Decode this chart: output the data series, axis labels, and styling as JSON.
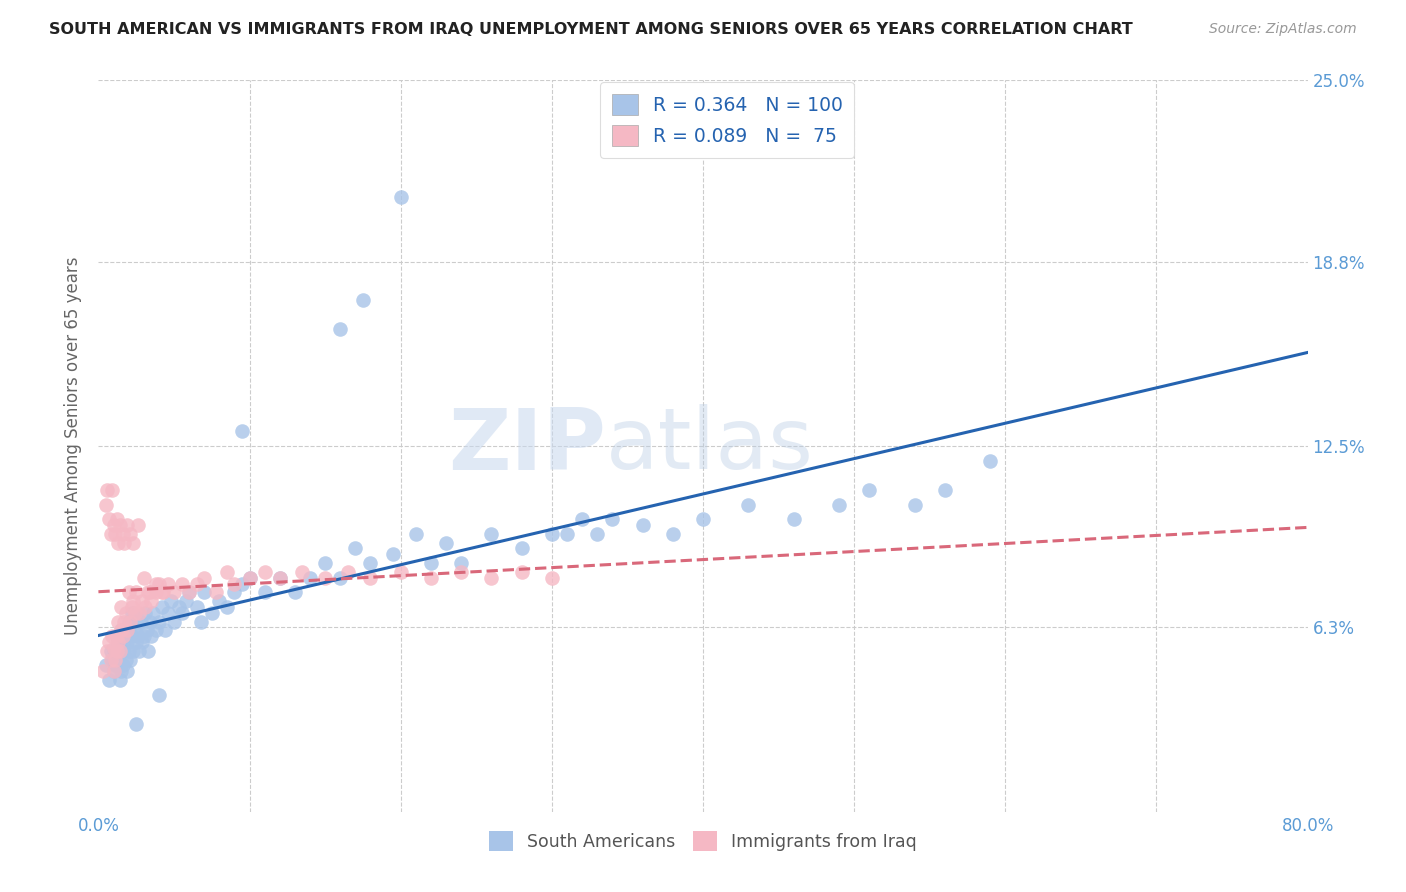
{
  "title": "SOUTH AMERICAN VS IMMIGRANTS FROM IRAQ UNEMPLOYMENT AMONG SENIORS OVER 65 YEARS CORRELATION CHART",
  "source": "Source: ZipAtlas.com",
  "ylabel": "Unemployment Among Seniors over 65 years",
  "xlim": [
    0.0,
    0.8
  ],
  "ylim": [
    0.0,
    0.25
  ],
  "ytick_vals": [
    0.0,
    0.063,
    0.125,
    0.188,
    0.25
  ],
  "ytick_labels": [
    "",
    "6.3%",
    "12.5%",
    "18.8%",
    "25.0%"
  ],
  "xtick_vals": [
    0.0,
    0.1,
    0.2,
    0.3,
    0.4,
    0.5,
    0.6,
    0.7,
    0.8
  ],
  "xtick_labels": [
    "0.0%",
    "",
    "",
    "",
    "",
    "",
    "",
    "",
    "80.0%"
  ],
  "blue_color": "#a8c4e8",
  "pink_color": "#f5b8c4",
  "blue_line_color": "#2563b0",
  "pink_line_color": "#d9687a",
  "R_blue": 0.364,
  "N_blue": 100,
  "R_pink": 0.089,
  "N_pink": 75,
  "label_blue": "South Americans",
  "label_pink": "Immigrants from Iraq",
  "watermark_zip": "ZIP",
  "watermark_atlas": "atlas",
  "title_color": "#222222",
  "axis_label_color": "#5b9bd5",
  "tick_color": "#5b9bd5",
  "ylabel_color": "#666666",
  "background_color": "#ffffff",
  "blue_scatter_x": [
    0.005,
    0.007,
    0.008,
    0.009,
    0.01,
    0.01,
    0.011,
    0.012,
    0.012,
    0.013,
    0.013,
    0.014,
    0.014,
    0.015,
    0.015,
    0.015,
    0.016,
    0.016,
    0.017,
    0.017,
    0.018,
    0.018,
    0.019,
    0.019,
    0.02,
    0.02,
    0.021,
    0.022,
    0.022,
    0.023,
    0.024,
    0.025,
    0.025,
    0.026,
    0.027,
    0.028,
    0.029,
    0.03,
    0.031,
    0.032,
    0.033,
    0.034,
    0.035,
    0.036,
    0.038,
    0.04,
    0.042,
    0.044,
    0.046,
    0.048,
    0.05,
    0.053,
    0.055,
    0.058,
    0.06,
    0.065,
    0.068,
    0.07,
    0.075,
    0.08,
    0.085,
    0.09,
    0.095,
    0.1,
    0.11,
    0.12,
    0.13,
    0.14,
    0.15,
    0.16,
    0.17,
    0.18,
    0.195,
    0.21,
    0.22,
    0.23,
    0.24,
    0.26,
    0.28,
    0.3,
    0.31,
    0.32,
    0.33,
    0.34,
    0.36,
    0.38,
    0.4,
    0.43,
    0.46,
    0.49,
    0.51,
    0.54,
    0.56,
    0.59,
    0.2,
    0.16,
    0.175,
    0.095,
    0.04,
    0.025
  ],
  "blue_scatter_y": [
    0.05,
    0.045,
    0.055,
    0.052,
    0.048,
    0.055,
    0.05,
    0.055,
    0.06,
    0.05,
    0.058,
    0.045,
    0.055,
    0.048,
    0.055,
    0.062,
    0.05,
    0.058,
    0.055,
    0.062,
    0.052,
    0.06,
    0.048,
    0.058,
    0.055,
    0.065,
    0.052,
    0.06,
    0.068,
    0.055,
    0.062,
    0.058,
    0.065,
    0.06,
    0.055,
    0.065,
    0.058,
    0.06,
    0.068,
    0.062,
    0.055,
    0.065,
    0.06,
    0.068,
    0.062,
    0.065,
    0.07,
    0.062,
    0.068,
    0.072,
    0.065,
    0.07,
    0.068,
    0.072,
    0.075,
    0.07,
    0.065,
    0.075,
    0.068,
    0.072,
    0.07,
    0.075,
    0.078,
    0.08,
    0.075,
    0.08,
    0.075,
    0.08,
    0.085,
    0.08,
    0.09,
    0.085,
    0.088,
    0.095,
    0.085,
    0.092,
    0.085,
    0.095,
    0.09,
    0.095,
    0.095,
    0.1,
    0.095,
    0.1,
    0.098,
    0.095,
    0.1,
    0.105,
    0.1,
    0.105,
    0.11,
    0.105,
    0.11,
    0.12,
    0.21,
    0.165,
    0.175,
    0.13,
    0.04,
    0.03
  ],
  "pink_scatter_x": [
    0.003,
    0.005,
    0.006,
    0.007,
    0.008,
    0.009,
    0.01,
    0.01,
    0.011,
    0.012,
    0.012,
    0.013,
    0.013,
    0.014,
    0.015,
    0.015,
    0.016,
    0.017,
    0.018,
    0.019,
    0.02,
    0.021,
    0.022,
    0.023,
    0.024,
    0.025,
    0.027,
    0.029,
    0.031,
    0.033,
    0.035,
    0.038,
    0.04,
    0.043,
    0.046,
    0.05,
    0.055,
    0.06,
    0.065,
    0.07,
    0.078,
    0.085,
    0.09,
    0.1,
    0.11,
    0.12,
    0.135,
    0.15,
    0.165,
    0.18,
    0.2,
    0.22,
    0.24,
    0.26,
    0.28,
    0.3,
    0.006,
    0.007,
    0.008,
    0.009,
    0.01,
    0.011,
    0.012,
    0.013,
    0.014,
    0.016,
    0.017,
    0.019,
    0.021,
    0.023,
    0.026,
    0.03,
    0.034,
    0.038,
    0.042
  ],
  "pink_scatter_y": [
    0.048,
    0.105,
    0.055,
    0.058,
    0.052,
    0.06,
    0.048,
    0.056,
    0.052,
    0.06,
    0.055,
    0.065,
    0.058,
    0.055,
    0.062,
    0.07,
    0.06,
    0.065,
    0.068,
    0.062,
    0.075,
    0.065,
    0.07,
    0.072,
    0.068,
    0.075,
    0.068,
    0.072,
    0.07,
    0.075,
    0.072,
    0.075,
    0.078,
    0.075,
    0.078,
    0.075,
    0.078,
    0.075,
    0.078,
    0.08,
    0.075,
    0.082,
    0.078,
    0.08,
    0.082,
    0.08,
    0.082,
    0.08,
    0.082,
    0.08,
    0.082,
    0.08,
    0.082,
    0.08,
    0.082,
    0.08,
    0.11,
    0.1,
    0.095,
    0.11,
    0.098,
    0.095,
    0.1,
    0.092,
    0.098,
    0.095,
    0.092,
    0.098,
    0.095,
    0.092,
    0.098,
    0.08,
    0.075,
    0.078,
    0.075
  ]
}
